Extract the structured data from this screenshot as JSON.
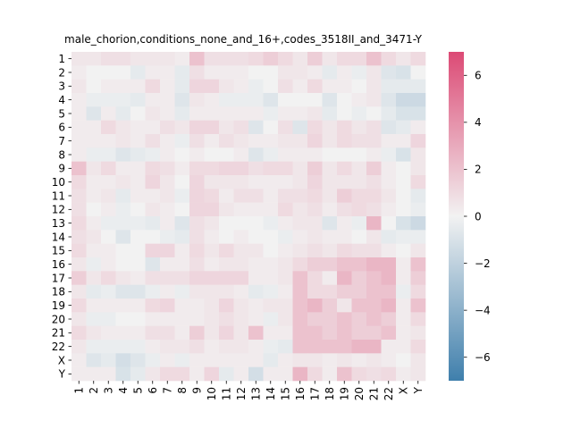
{
  "chart_data": {
    "type": "heatmap",
    "title": "male_chorion,conditions_none_and_16+,codes_3518II_and_3471-Y",
    "xlabel": "",
    "ylabel": "",
    "x_categories": [
      "1",
      "2",
      "3",
      "4",
      "5",
      "6",
      "7",
      "8",
      "9",
      "10",
      "11",
      "12",
      "13",
      "14",
      "15",
      "16",
      "17",
      "18",
      "19",
      "20",
      "21",
      "22",
      "X",
      "Y"
    ],
    "y_categories": [
      "1",
      "2",
      "3",
      "4",
      "5",
      "6",
      "7",
      "8",
      "9",
      "10",
      "11",
      "12",
      "13",
      "14",
      "15",
      "16",
      "17",
      "18",
      "19",
      "20",
      "21",
      "22",
      "X",
      "Y"
    ],
    "colorbar": {
      "range": [
        -7,
        7
      ],
      "ticks": [
        -6,
        -4,
        -2,
        0,
        2,
        4,
        6
      ],
      "tick_labels": [
        "−6",
        "−4",
        "−2",
        "0",
        "2",
        "4",
        "6"
      ],
      "colors": {
        "negative": "#3f7fac",
        "center": "#f2f2f2",
        "positive": "#dc4a75"
      }
    },
    "values": [
      [
        0.5,
        0.5,
        0.8,
        0.8,
        0.5,
        0.5,
        0.5,
        0.3,
        2.0,
        0.8,
        0.8,
        0.8,
        1.0,
        1.5,
        1.0,
        0.5,
        1.5,
        0.5,
        1.0,
        1.0,
        2.0,
        1.0,
        0.5,
        1.0
      ],
      [
        0.3,
        0.0,
        0.0,
        0.0,
        -0.5,
        0.3,
        0.3,
        -0.5,
        0.8,
        0.3,
        0.3,
        0.3,
        0.0,
        0.0,
        0.5,
        0.5,
        0.3,
        -0.5,
        0.3,
        -0.3,
        0.5,
        -0.8,
        -1.0,
        0.0
      ],
      [
        0.5,
        0.0,
        0.3,
        0.3,
        0.3,
        1.0,
        0.3,
        -0.5,
        1.2,
        1.2,
        0.5,
        0.3,
        -0.3,
        0.0,
        0.8,
        0.3,
        1.0,
        0.3,
        0.3,
        0.0,
        0.5,
        -0.5,
        -0.5,
        -0.5
      ],
      [
        0.3,
        -0.3,
        -0.3,
        -0.3,
        -0.5,
        0.3,
        0.3,
        -0.8,
        0.5,
        0.3,
        -0.3,
        -0.3,
        -0.3,
        -0.8,
        0.0,
        0.0,
        0.0,
        -0.8,
        0.0,
        0.3,
        0.5,
        -0.8,
        -1.5,
        -1.5
      ],
      [
        0.3,
        -0.8,
        0.3,
        -0.5,
        0.0,
        0.5,
        0.3,
        -0.5,
        0.3,
        0.3,
        0.3,
        0.3,
        0.3,
        -0.3,
        0.3,
        0.3,
        0.5,
        -0.5,
        0.0,
        -0.3,
        0.0,
        -0.5,
        -1.0,
        -1.0
      ],
      [
        0.3,
        0.3,
        1.0,
        0.5,
        0.3,
        0.3,
        0.8,
        0.5,
        1.2,
        1.2,
        0.5,
        0.8,
        -0.8,
        0.0,
        0.8,
        -0.8,
        1.0,
        0.5,
        1.0,
        0.5,
        0.8,
        -0.8,
        -0.5,
        0.3
      ],
      [
        0.3,
        0.3,
        0.3,
        0.5,
        0.3,
        0.8,
        0.3,
        -0.3,
        0.8,
        0.3,
        0.8,
        0.5,
        0.3,
        0.3,
        0.5,
        0.5,
        1.2,
        0.5,
        1.0,
        0.8,
        0.8,
        0.3,
        0.3,
        1.2
      ],
      [
        0.3,
        -0.3,
        -0.3,
        -0.8,
        -0.5,
        -0.3,
        0.3,
        0.0,
        0.3,
        0.0,
        0.0,
        0.3,
        -0.8,
        -0.3,
        0.3,
        0.3,
        0.3,
        0.0,
        0.0,
        0.0,
        0.3,
        -0.3,
        -1.0,
        0.5
      ],
      [
        2.0,
        0.5,
        1.0,
        0.3,
        0.3,
        1.0,
        0.8,
        0.3,
        1.0,
        1.0,
        1.2,
        1.2,
        0.8,
        1.0,
        1.0,
        0.5,
        1.5,
        0.5,
        1.0,
        0.5,
        1.5,
        0.3,
        0.0,
        0.5
      ],
      [
        1.0,
        0.3,
        0.3,
        0.5,
        0.3,
        1.2,
        0.5,
        0.0,
        1.2,
        0.5,
        0.5,
        0.5,
        0.3,
        0.3,
        0.3,
        0.5,
        1.2,
        0.5,
        0.5,
        0.5,
        0.8,
        0.3,
        0.0,
        1.0
      ],
      [
        0.8,
        0.3,
        0.5,
        -0.5,
        0.3,
        0.3,
        0.5,
        -0.3,
        1.2,
        1.0,
        0.3,
        0.8,
        0.8,
        0.3,
        0.8,
        0.8,
        1.0,
        0.5,
        1.5,
        1.0,
        1.0,
        0.5,
        0.0,
        -0.5
      ],
      [
        0.8,
        0.0,
        0.3,
        -0.3,
        0.0,
        0.5,
        0.3,
        0.0,
        1.2,
        1.2,
        0.5,
        0.3,
        0.3,
        0.3,
        1.0,
        0.5,
        0.8,
        0.3,
        0.8,
        1.0,
        0.8,
        0.3,
        0.0,
        -0.3
      ],
      [
        1.0,
        0.3,
        -0.3,
        -0.3,
        -0.3,
        -0.5,
        0.3,
        -0.8,
        0.8,
        0.5,
        0.0,
        0.0,
        0.0,
        -0.3,
        0.3,
        0.5,
        0.5,
        -0.8,
        0.3,
        -0.3,
        2.5,
        0.0,
        -1.0,
        -1.5
      ],
      [
        0.8,
        0.5,
        0.0,
        -0.8,
        0.0,
        0.0,
        -0.3,
        -0.5,
        0.8,
        0.3,
        0.0,
        0.3,
        0.0,
        0.0,
        -0.3,
        0.3,
        0.5,
        0.3,
        0.3,
        0.0,
        0.5,
        -0.5,
        -0.3,
        -0.3
      ],
      [
        1.0,
        0.3,
        0.3,
        0.0,
        0.0,
        1.2,
        1.2,
        0.3,
        1.0,
        0.5,
        1.0,
        0.5,
        0.5,
        0.0,
        0.3,
        0.5,
        0.8,
        0.5,
        1.0,
        0.8,
        0.8,
        0.3,
        0.0,
        0.5
      ],
      [
        0.5,
        -0.3,
        0.3,
        0.0,
        0.0,
        -0.8,
        0.3,
        0.3,
        0.8,
        0.3,
        0.5,
        0.5,
        0.3,
        0.3,
        0.5,
        1.0,
        1.5,
        1.5,
        2.0,
        2.0,
        2.5,
        2.5,
        0.3,
        2.0
      ],
      [
        1.5,
        0.5,
        1.0,
        0.5,
        0.3,
        0.8,
        0.8,
        0.8,
        1.2,
        1.2,
        1.2,
        1.2,
        0.3,
        0.3,
        0.5,
        2.0,
        1.0,
        0.3,
        2.5,
        1.5,
        2.0,
        2.5,
        0.3,
        1.5
      ],
      [
        0.5,
        -0.5,
        -0.3,
        -0.8,
        -0.8,
        -0.3,
        0.3,
        -0.3,
        0.5,
        0.5,
        0.5,
        0.3,
        -0.5,
        -0.3,
        0.3,
        2.0,
        1.0,
        1.0,
        1.5,
        1.5,
        2.0,
        2.0,
        -0.3,
        1.0
      ],
      [
        1.0,
        0.3,
        0.3,
        0.3,
        0.3,
        1.0,
        1.2,
        0.3,
        0.3,
        0.5,
        1.2,
        0.5,
        0.3,
        0.5,
        0.5,
        2.0,
        2.5,
        1.5,
        0.5,
        2.0,
        2.0,
        2.5,
        0.3,
        2.0
      ],
      [
        0.5,
        -0.3,
        -0.3,
        0.0,
        0.0,
        0.3,
        0.3,
        0.3,
        0.3,
        0.5,
        0.8,
        0.5,
        0.3,
        -0.3,
        0.5,
        2.0,
        1.5,
        1.5,
        2.0,
        1.5,
        2.0,
        1.5,
        0.3,
        1.0
      ],
      [
        1.0,
        0.5,
        0.3,
        0.3,
        0.3,
        0.8,
        0.8,
        0.3,
        1.5,
        0.5,
        1.2,
        0.5,
        2.0,
        0.3,
        0.3,
        2.0,
        2.0,
        1.5,
        2.0,
        1.5,
        1.5,
        2.0,
        0.3,
        0.5
      ],
      [
        0.5,
        -0.3,
        -0.3,
        -0.3,
        -0.3,
        0.3,
        0.5,
        0.5,
        0.8,
        0.3,
        0.5,
        0.5,
        0.3,
        -0.3,
        -0.5,
        2.0,
        2.0,
        2.0,
        2.0,
        2.5,
        2.5,
        0.3,
        0.3,
        1.0
      ],
      [
        0.3,
        -0.8,
        -0.5,
        -1.2,
        -0.8,
        -0.3,
        0.3,
        -0.3,
        0.3,
        0.3,
        0.3,
        0.3,
        0.3,
        -0.5,
        0.3,
        0.5,
        0.5,
        0.3,
        0.5,
        0.3,
        0.5,
        0.3,
        0.0,
        0.5
      ],
      [
        0.3,
        0.3,
        0.3,
        -1.0,
        -0.5,
        0.5,
        1.0,
        1.0,
        0.3,
        1.2,
        -0.5,
        0.3,
        -1.2,
        0.3,
        0.3,
        2.5,
        1.0,
        0.3,
        2.0,
        1.0,
        0.8,
        1.0,
        0.3,
        0.5
      ]
    ]
  }
}
